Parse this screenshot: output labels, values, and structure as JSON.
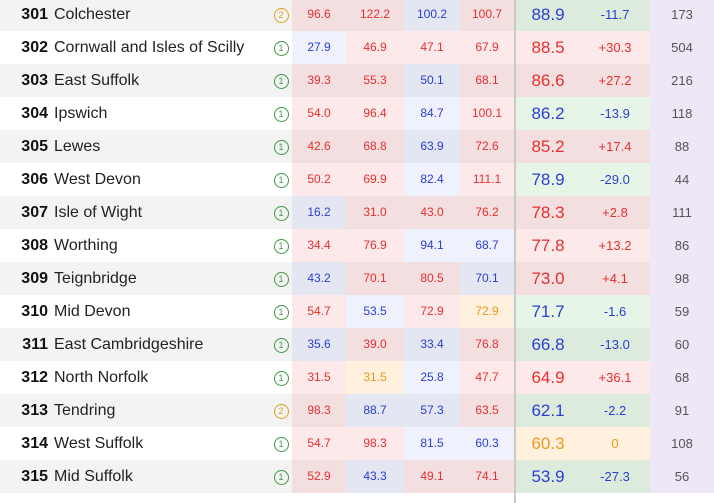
{
  "rows": [
    {
      "rank": "301",
      "name": "Colchester",
      "tier": "2",
      "v1": "96.6",
      "v2": "122.2",
      "v3": "100.2",
      "v4": "100.7",
      "rate": "88.9",
      "change": "-11.7",
      "cases": "173"
    },
    {
      "rank": "302",
      "name": "Cornwall and Isles of Scilly",
      "tier": "1",
      "v1": "27.9",
      "v2": "46.9",
      "v3": "47.1",
      "v4": "67.9",
      "rate": "88.5",
      "change": "+30.3",
      "cases": "504"
    },
    {
      "rank": "303",
      "name": "East Suffolk",
      "tier": "1",
      "v1": "39.3",
      "v2": "55.3",
      "v3": "50.1",
      "v4": "68.1",
      "rate": "86.6",
      "change": "+27.2",
      "cases": "216"
    },
    {
      "rank": "304",
      "name": "Ipswich",
      "tier": "1",
      "v1": "54.0",
      "v2": "96.4",
      "v3": "84.7",
      "v4": "100.1",
      "rate": "86.2",
      "change": "-13.9",
      "cases": "118"
    },
    {
      "rank": "305",
      "name": "Lewes",
      "tier": "1",
      "v1": "42.6",
      "v2": "68.8",
      "v3": "63.9",
      "v4": "72.6",
      "rate": "85.2",
      "change": "+17.4",
      "cases": "88"
    },
    {
      "rank": "306",
      "name": "West Devon",
      "tier": "1",
      "v1": "50.2",
      "v2": "69.9",
      "v3": "82.4",
      "v4": "111.1",
      "rate": "78.9",
      "change": "-29.0",
      "cases": "44"
    },
    {
      "rank": "307",
      "name": "Isle of Wight",
      "tier": "1",
      "v1": "16.2",
      "v2": "31.0",
      "v3": "43.0",
      "v4": "76.2",
      "rate": "78.3",
      "change": "+2.8",
      "cases": "111"
    },
    {
      "rank": "308",
      "name": "Worthing",
      "tier": "1",
      "v1": "34.4",
      "v2": "76.9",
      "v3": "94.1",
      "v4": "68.7",
      "rate": "77.8",
      "change": "+13.2",
      "cases": "86"
    },
    {
      "rank": "309",
      "name": "Teignbridge",
      "tier": "1",
      "v1": "43.2",
      "v2": "70.1",
      "v3": "80.5",
      "v4": "70.1",
      "rate": "73.0",
      "change": "+4.1",
      "cases": "98"
    },
    {
      "rank": "310",
      "name": "Mid Devon",
      "tier": "1",
      "v1": "54.7",
      "v2": "53.5",
      "v3": "72.9",
      "v4": "72.9",
      "rate": "71.7",
      "change": "-1.6",
      "cases": "59"
    },
    {
      "rank": "311",
      "name": "East Cambridgeshire",
      "tier": "1",
      "v1": "35.6",
      "v2": "39.0",
      "v3": "33.4",
      "v4": "76.8",
      "rate": "66.8",
      "change": "-13.0",
      "cases": "60"
    },
    {
      "rank": "312",
      "name": "North Norfolk",
      "tier": "1",
      "v1": "31.5",
      "v2": "31.5",
      "v3": "25.8",
      "v4": "47.7",
      "rate": "64.9",
      "change": "+36.1",
      "cases": "68"
    },
    {
      "rank": "313",
      "name": "Tendring",
      "tier": "2",
      "v1": "98.3",
      "v2": "88.7",
      "v3": "57.3",
      "v4": "63.5",
      "rate": "62.1",
      "change": "-2.2",
      "cases": "91"
    },
    {
      "rank": "314",
      "name": "West Suffolk",
      "tier": "1",
      "v1": "54.7",
      "v2": "98.3",
      "v3": "81.5",
      "v4": "60.3",
      "rate": "60.3",
      "change": "0",
      "cases": "108"
    },
    {
      "rank": "315",
      "name": "Mid Suffolk",
      "tier": "1",
      "v1": "52.9",
      "v2": "43.3",
      "v3": "49.1",
      "v4": "74.1",
      "rate": "53.9",
      "change": "-27.3",
      "cases": "56"
    }
  ],
  "colors": {
    "v1": [
      "red",
      "blue",
      "red",
      "red",
      "red",
      "red",
      "blue",
      "red",
      "blue",
      "red",
      "blue",
      "red",
      "red",
      "red",
      "red"
    ],
    "v2": [
      "red",
      "red",
      "red",
      "red",
      "red",
      "red",
      "red",
      "red",
      "red",
      "blue",
      "red",
      "orange",
      "blue",
      "red",
      "blue"
    ],
    "v3": [
      "blue",
      "red",
      "blue",
      "blue",
      "blue",
      "blue",
      "red",
      "blue",
      "red",
      "red",
      "blue",
      "blue",
      "blue",
      "blue",
      "red"
    ],
    "v4": [
      "red",
      "red",
      "red",
      "red",
      "red",
      "red",
      "red",
      "blue",
      "blue",
      "orange",
      "red",
      "red",
      "red",
      "blue",
      "red"
    ],
    "rate": [
      "blue",
      "red",
      "red",
      "blue",
      "red",
      "blue",
      "red",
      "red",
      "red",
      "blue",
      "blue",
      "red",
      "blue",
      "orange",
      "blue"
    ],
    "change": [
      "blue",
      "red",
      "red",
      "blue",
      "red",
      "blue",
      "red",
      "red",
      "red",
      "blue",
      "blue",
      "red",
      "blue",
      "orange",
      "blue"
    ],
    "bg_v1": [
      "red",
      "blue",
      "red",
      "red",
      "red",
      "red",
      "blue",
      "red",
      "blue",
      "red",
      "blue",
      "red",
      "red",
      "red",
      "red"
    ],
    "bg_v2": [
      "red",
      "red",
      "red",
      "red",
      "red",
      "red",
      "red",
      "red",
      "red",
      "blue",
      "red",
      "peach",
      "blue",
      "red",
      "blue"
    ],
    "bg_v3": [
      "blue",
      "red",
      "blue",
      "blue",
      "blue",
      "blue",
      "red",
      "blue",
      "red",
      "red",
      "blue",
      "blue",
      "blue",
      "blue",
      "red"
    ],
    "bg_v4": [
      "red",
      "red",
      "red",
      "red",
      "red",
      "red",
      "red",
      "blue",
      "blue",
      "peach",
      "red",
      "red",
      "red",
      "blue",
      "red"
    ],
    "bg_rate": [
      "green",
      "red",
      "red",
      "green",
      "red",
      "green",
      "red",
      "red",
      "red",
      "green",
      "green",
      "red",
      "green",
      "peach",
      "green"
    ],
    "bg_change": [
      "green",
      "red",
      "red",
      "green",
      "red",
      "green",
      "red",
      "red",
      "red",
      "green",
      "green",
      "red",
      "green",
      "peach",
      "green"
    ]
  }
}
